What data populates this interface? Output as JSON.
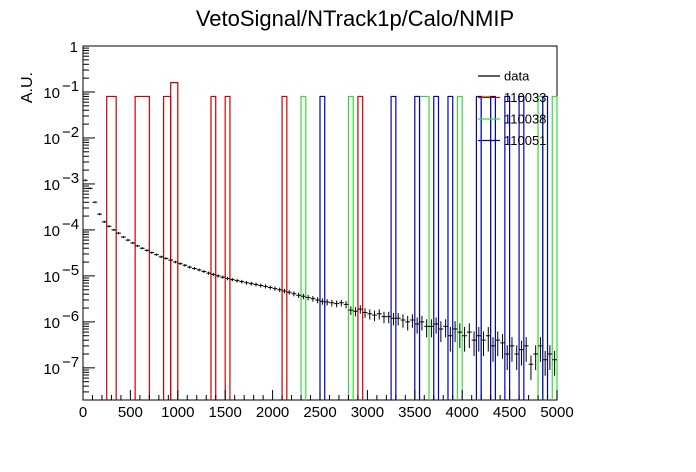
{
  "chart_data": {
    "type": "line",
    "title": "VetoSignal/NTrack1p/Calo/NMIP",
    "xlabel": "",
    "ylabel": "A.U.",
    "xlim": [
      0,
      5000
    ],
    "ylim": [
      2e-08,
      1
    ],
    "log_y": true,
    "grid": false,
    "legend_position": "top-right",
    "x_ticks": [
      "0",
      "500",
      "1000",
      "1500",
      "2000",
      "2500",
      "3000",
      "3500",
      "4000",
      "4500",
      "5000"
    ],
    "y_ticks": [
      {
        "value": 1,
        "label": "1"
      },
      {
        "value": 0.1,
        "label": "10",
        "exp": "−1"
      },
      {
        "value": 0.01,
        "label": "10",
        "exp": "−2"
      },
      {
        "value": 0.001,
        "label": "10",
        "exp": "−3"
      },
      {
        "value": 0.0001,
        "label": "10",
        "exp": "−4"
      },
      {
        "value": 1e-05,
        "label": "10",
        "exp": "−5"
      },
      {
        "value": 1e-06,
        "label": "10",
        "exp": "−6"
      },
      {
        "value": 1e-07,
        "label": "10",
        "exp": "−7"
      }
    ],
    "series": [
      {
        "name": "data",
        "style": "points",
        "color": "#000000",
        "x": [
          25,
          75,
          125,
          175,
          225,
          275,
          325,
          375,
          425,
          475,
          525,
          575,
          625,
          675,
          725,
          775,
          825,
          875,
          925,
          975,
          1025,
          1075,
          1125,
          1175,
          1225,
          1275,
          1325,
          1375,
          1425,
          1475,
          1525,
          1575,
          1625,
          1675,
          1725,
          1775,
          1825,
          1875,
          1925,
          1975,
          2025,
          2075,
          2125,
          2175,
          2225,
          2275,
          2325,
          2375,
          2425,
          2475,
          2525,
          2575,
          2625,
          2675,
          2725,
          2775,
          2825,
          2875,
          2925,
          2975,
          3025,
          3075,
          3125,
          3175,
          3225,
          3275,
          3325,
          3375,
          3425,
          3475,
          3525,
          3575,
          3625,
          3675,
          3725,
          3775,
          3825,
          3875,
          3925,
          3975,
          4025,
          4075,
          4125,
          4175,
          4225,
          4275,
          4325,
          4375,
          4425,
          4475,
          4525,
          4575,
          4625,
          4675,
          4725,
          4775,
          4825,
          4875,
          4925,
          4975
        ],
        "y": [
          0.0012,
          0.0008,
          0.0004,
          0.00022,
          0.00015,
          0.00012,
          0.0001,
          8.5e-05,
          7e-05,
          6e-05,
          5.2e-05,
          4.5e-05,
          4e-05,
          3.6e-05,
          3.2e-05,
          2.9e-05,
          2.6e-05,
          2.4e-05,
          2.2e-05,
          2e-05,
          1.85e-05,
          1.7e-05,
          1.55e-05,
          1.45e-05,
          1.35e-05,
          1.25e-05,
          1.15e-05,
          1.08e-05,
          1e-05,
          9.4e-06,
          8.8e-06,
          8.3e-06,
          7.9e-06,
          7.5e-06,
          7.1e-06,
          6.8e-06,
          6.5e-06,
          6.2e-06,
          5.9e-06,
          5.6e-06,
          5.3e-06,
          5e-06,
          4.7e-06,
          4.4e-06,
          4.1e-06,
          3.8e-06,
          3.6e-06,
          3.4e-06,
          3.2e-06,
          3e-06,
          2.8e-06,
          2.7e-06,
          2.6e-06,
          2.5e-06,
          2.6e-06,
          2.4e-06,
          1.8e-06,
          1.7e-06,
          1.9e-06,
          1.6e-06,
          1.5e-06,
          1.4e-06,
          1.5e-06,
          1.3e-06,
          1.3e-06,
          1.2e-06,
          1.2e-06,
          1.1e-06,
          1e-06,
          1.1e-06,
          9e-07,
          1e-06,
          8e-07,
          8e-07,
          9e-07,
          7e-07,
          8e-07,
          5e-07,
          7e-07,
          6e-07,
          5e-07,
          6e-07,
          4e-07,
          5e-07,
          4e-07,
          5e-07,
          3e-07,
          4e-07,
          3.5e-07,
          2e-07,
          3e-07,
          2e-07,
          2.5e-07,
          3e-07,
          1.2e-07,
          2e-07,
          3e-07,
          1.5e-07,
          2e-07,
          1.5e-07
        ]
      },
      {
        "name": "110033",
        "style": "step",
        "color": "#cc0000",
        "bins": [
          [
            250,
            350,
            0.08
          ],
          [
            550,
            700,
            0.08
          ],
          [
            850,
            925,
            0.08
          ],
          [
            925,
            1000,
            0.16
          ],
          [
            1350,
            1400,
            0.08
          ],
          [
            1500,
            1550,
            0.08
          ],
          [
            2100,
            2150,
            0.08
          ],
          [
            2900,
            2950,
            0.08
          ]
        ]
      },
      {
        "name": "110038",
        "style": "step",
        "color": "#33dd33",
        "bins": [
          [
            2300,
            2350,
            0.08
          ],
          [
            2800,
            2850,
            0.08
          ],
          [
            3550,
            3650,
            0.08
          ],
          [
            3950,
            4000,
            0.08
          ],
          [
            4200,
            4300,
            0.08
          ],
          [
            4800,
            4850,
            0.08
          ],
          [
            4950,
            5000,
            0.08
          ]
        ]
      },
      {
        "name": "110051",
        "style": "step",
        "color": "#0000bb",
        "bins": [
          [
            2500,
            2550,
            0.08
          ],
          [
            3250,
            3300,
            0.08
          ],
          [
            3500,
            3550,
            0.08
          ],
          [
            3700,
            3750,
            0.08
          ],
          [
            3850,
            3900,
            0.08
          ],
          [
            4150,
            4200,
            0.08
          ],
          [
            4300,
            4350,
            0.08
          ],
          [
            4450,
            4500,
            0.08
          ],
          [
            4600,
            4650,
            0.08
          ],
          [
            4850,
            4900,
            0.08
          ]
        ]
      }
    ]
  }
}
